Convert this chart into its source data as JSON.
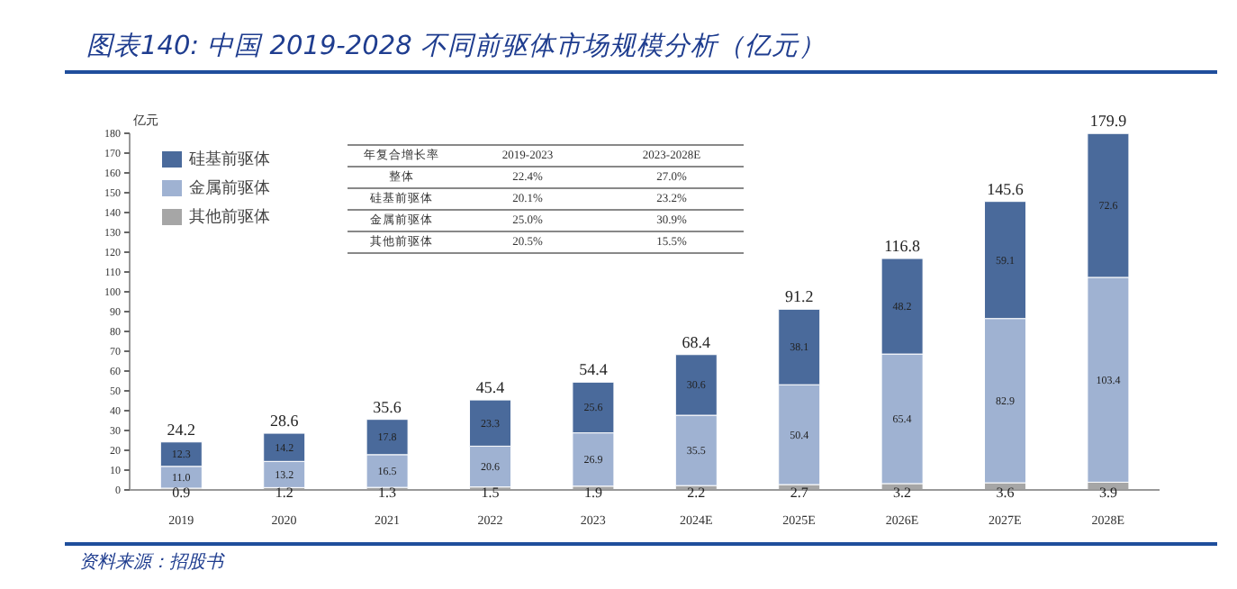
{
  "chart_data": {
    "type": "bar",
    "title": "图表140:  中国 2019-2028 不同前驱体市场规模分析（亿元）",
    "ylabel": "亿元",
    "categories": [
      "2019",
      "2020",
      "2021",
      "2022",
      "2023",
      "2024E",
      "2025E",
      "2026E",
      "2027E",
      "2028E"
    ],
    "stacked": true,
    "series": [
      {
        "name": "其他前驱体",
        "color": "#a6a6a6",
        "values": [
          0.9,
          1.2,
          1.3,
          1.5,
          1.9,
          2.2,
          2.7,
          3.2,
          3.6,
          3.9
        ],
        "value_labels": [
          "0.9",
          "1.2",
          "1.3",
          "1.5",
          "1.9",
          "2.2",
          "2.7",
          "3.2",
          "3.6",
          "3.9"
        ]
      },
      {
        "name": "金属前驱体",
        "color": "#9fb2d2",
        "values": [
          11.0,
          13.2,
          16.5,
          20.6,
          26.9,
          35.5,
          50.4,
          65.4,
          82.9,
          103.4
        ],
        "value_labels": [
          "11.0",
          "13.2",
          "16.5",
          "20.6",
          "26.9",
          "35.5",
          "50.4",
          "65.4",
          "82.9",
          "103.4"
        ]
      },
      {
        "name": "硅基前驱体",
        "color": "#4a6a9b",
        "values": [
          12.3,
          14.2,
          17.8,
          23.3,
          25.6,
          30.6,
          38.1,
          48.2,
          59.1,
          72.6
        ],
        "value_labels": [
          "12.3",
          "14.2",
          "17.8",
          "23.3",
          "25.6",
          "30.6",
          "38.1",
          "48.2",
          "59.1",
          "72.6"
        ]
      }
    ],
    "totals": [
      "24.2",
      "28.6",
      "35.6",
      "45.4",
      "54.4",
      "68.4",
      "91.2",
      "116.8",
      "145.6",
      "179.9"
    ],
    "ylim": [
      0,
      180
    ],
    "yticks": [
      0,
      10,
      20,
      30,
      40,
      50,
      60,
      70,
      80,
      90,
      100,
      110,
      120,
      130,
      140,
      150,
      160,
      170,
      180
    ],
    "legend": "top left",
    "annotations": [
      "年复合增长率",
      "2019-2023",
      "2023-2028E",
      "整体",
      "22.4%",
      "27.0%",
      "硅基前驱体",
      "20.1%",
      "23.2%",
      "金属前驱体",
      "25.0%",
      "30.9%",
      "其他前驱体",
      "20.5%",
      "15.5%",
      "资料来源：招股书"
    ]
  }
}
